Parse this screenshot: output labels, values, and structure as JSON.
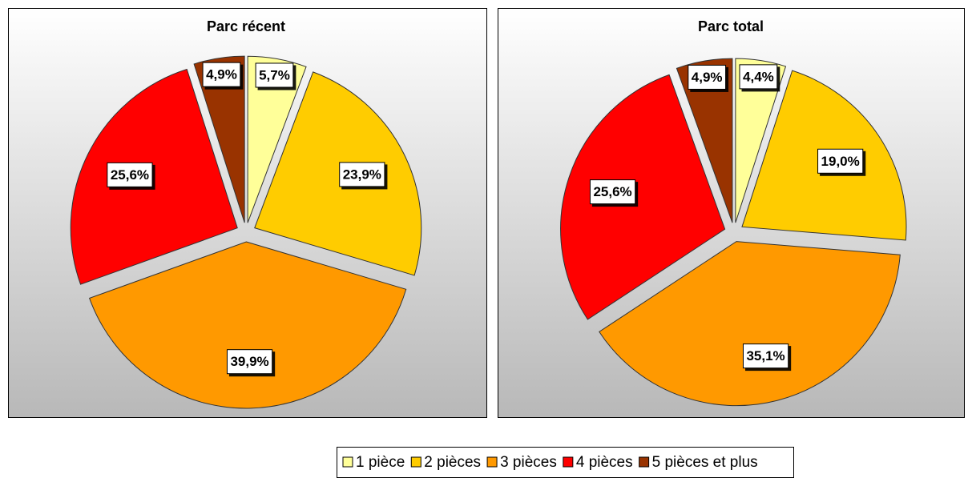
{
  "chart_data": [
    {
      "type": "pie",
      "title": "Parc récent",
      "categories": [
        "1 pièce",
        "2 pièces",
        "3 pièces",
        "4 pièces",
        "5 pièces et plus"
      ],
      "colors": [
        "#ffff99",
        "#ffcc00",
        "#ff9900",
        "#ff0000",
        "#993300"
      ],
      "values": [
        5.7,
        23.9,
        39.9,
        25.6,
        4.9
      ],
      "value_labels": [
        "5,7%",
        "23,9%",
        "39,9%",
        "25,6%",
        "4,9%"
      ]
    },
    {
      "type": "pie",
      "title": "Parc total",
      "values": [
        4.4,
        19.0,
        35.1,
        25.6,
        4.9
      ],
      "value_labels": [
        "4,4%",
        "19,0%",
        "35,1%",
        "25,6%",
        "4,9%"
      ]
    }
  ]
}
